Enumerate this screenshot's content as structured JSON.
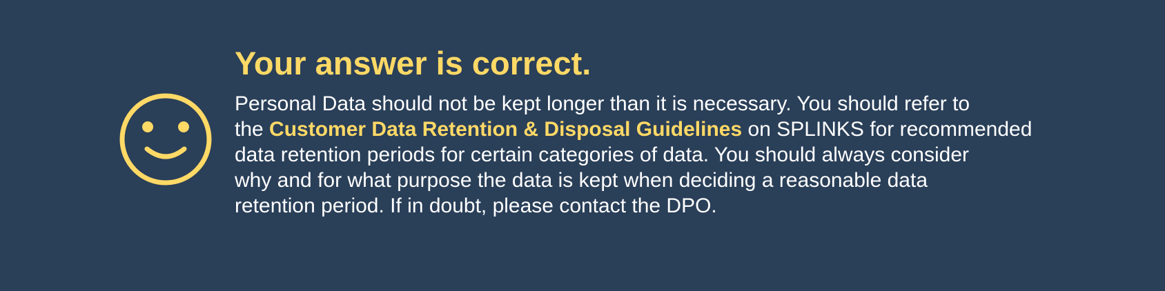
{
  "feedback": {
    "title": "Your answer is correct.",
    "icon": "smiley-face-icon",
    "message": {
      "line1": "Personal Data should not be kept longer than it is necessary. You should refer to",
      "line2_prefix": "the ",
      "highlight": "Customer Data Retention & Disposal Guidelines",
      "line2_suffix": " on SPLINKS for recommended",
      "line3": "data retention periods for certain categories of data. You should always consider",
      "line4": "why and for what purpose the data is kept when deciding a reasonable data",
      "line5": "retention period. If in doubt, please contact the DPO."
    }
  },
  "colors": {
    "background": "#2a3f58",
    "accent": "#ffd966",
    "text": "#ffffff"
  }
}
